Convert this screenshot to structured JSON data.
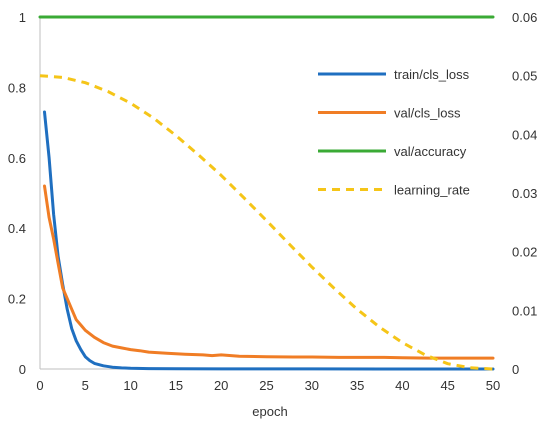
{
  "chart_data": {
    "type": "line",
    "xlabel": "epoch",
    "ylabel": "",
    "y2label": "",
    "xlim": [
      0,
      50
    ],
    "ylim": [
      0,
      1
    ],
    "y2lim": [
      0,
      0.06
    ],
    "x_ticks": [
      "0",
      "5",
      "10",
      "15",
      "20",
      "25",
      "30",
      "35",
      "40",
      "45",
      "50"
    ],
    "y_ticks": [
      "0",
      "0.2",
      "0.4",
      "0.6",
      "0.8",
      "1"
    ],
    "y2_ticks": [
      "0",
      "0.01",
      "0.02",
      "0.03",
      "0.04",
      "0.05",
      "0.06"
    ],
    "grid": false,
    "legend_position": "top-right",
    "series": [
      {
        "name": "train/cls_loss",
        "axis": "left",
        "color": "#1f6fc0",
        "dash": "solid",
        "x": [
          0.5,
          1,
          1.5,
          2,
          2.5,
          3,
          3.5,
          4,
          4.5,
          5,
          5.5,
          6,
          7,
          8,
          9,
          10,
          12,
          15,
          20,
          30,
          40,
          50
        ],
        "y": [
          0.73,
          0.6,
          0.44,
          0.32,
          0.24,
          0.17,
          0.115,
          0.08,
          0.055,
          0.035,
          0.024,
          0.016,
          0.009,
          0.005,
          0.003,
          0.002,
          0.001,
          0.0005,
          0.0003,
          0.0002,
          0.0001,
          0.0001
        ]
      },
      {
        "name": "val/cls_loss",
        "axis": "left",
        "color": "#f07d25",
        "dash": "solid",
        "x": [
          0.5,
          1,
          1.5,
          2,
          2.5,
          3,
          3.5,
          4,
          4.5,
          5,
          6,
          7,
          8,
          9,
          10,
          11,
          12,
          14,
          16,
          18,
          19,
          20,
          22,
          25,
          28,
          30,
          33,
          35,
          38,
          40,
          43,
          45,
          48,
          50
        ],
        "y": [
          0.52,
          0.43,
          0.37,
          0.3,
          0.23,
          0.2,
          0.17,
          0.14,
          0.125,
          0.11,
          0.09,
          0.075,
          0.065,
          0.06,
          0.055,
          0.052,
          0.048,
          0.045,
          0.042,
          0.04,
          0.038,
          0.04,
          0.036,
          0.035,
          0.034,
          0.034,
          0.033,
          0.033,
          0.033,
          0.032,
          0.031,
          0.031,
          0.031,
          0.031
        ]
      },
      {
        "name": "val/accuracy",
        "axis": "left",
        "color": "#3aaa35",
        "dash": "solid",
        "x": [
          0,
          50
        ],
        "y": [
          1.0,
          1.0
        ]
      },
      {
        "name": "learning_rate",
        "axis": "right",
        "color": "#f5c518",
        "dash": "dashed",
        "x": [
          0,
          2.5,
          5,
          7.5,
          10,
          12.5,
          15,
          17.5,
          20,
          22.5,
          25,
          27.5,
          30,
          32.5,
          35,
          37.5,
          40,
          42.5,
          45,
          47.5,
          50
        ],
        "y": [
          0.05,
          0.0497,
          0.0488,
          0.0473,
          0.0453,
          0.0428,
          0.0398,
          0.0365,
          0.033,
          0.0292,
          0.0253,
          0.0213,
          0.0174,
          0.0137,
          0.0102,
          0.0071,
          0.0045,
          0.0024,
          0.0009,
          0.0002,
          0.0
        ]
      }
    ]
  }
}
